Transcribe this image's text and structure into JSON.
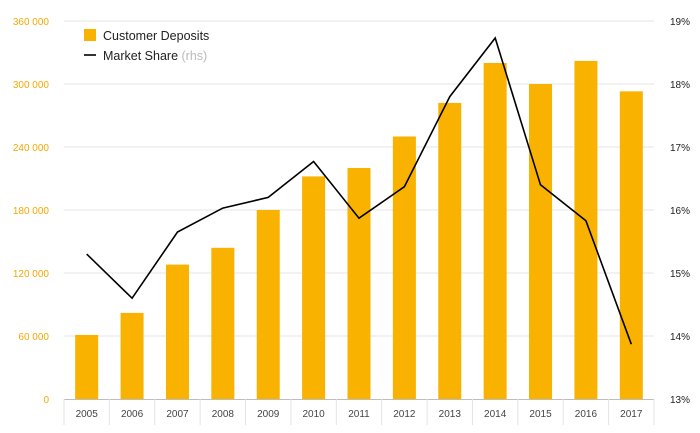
{
  "chart_data": {
    "type": "bar+line",
    "title": "",
    "categories": [
      "2005",
      "2006",
      "2007",
      "2008",
      "2009",
      "2010",
      "2011",
      "2012",
      "2013",
      "2014",
      "2015",
      "2016",
      "2017"
    ],
    "series": [
      {
        "name": "Customer Deposits",
        "type": "bar",
        "axis": "left",
        "color": "#f9b200",
        "values": [
          61000,
          82000,
          128000,
          144000,
          180000,
          212000,
          220000,
          250000,
          282000,
          320000,
          300000,
          322000,
          293000
        ]
      },
      {
        "name": "Market Share",
        "suffix": "(rhs)",
        "type": "line",
        "axis": "right",
        "color": "#000000",
        "values": [
          15.3,
          14.6,
          15.65,
          16.03,
          16.2,
          16.77,
          15.87,
          16.37,
          17.8,
          18.73,
          16.4,
          15.83,
          13.87
        ]
      }
    ],
    "y_left": {
      "min": 0,
      "max": 360000,
      "ticks": [
        0,
        60000,
        120000,
        180000,
        240000,
        300000,
        360000
      ],
      "tick_labels": [
        "0",
        "60 000",
        "120 000",
        "180 000",
        "240 000",
        "300 000",
        "360 000"
      ],
      "color": "#f5a800"
    },
    "y_right": {
      "min": 13,
      "max": 19,
      "ticks": [
        13,
        14,
        15,
        16,
        17,
        18,
        19
      ],
      "tick_labels": [
        "13%",
        "14%",
        "15%",
        "16%",
        "17%",
        "18%",
        "19%"
      ],
      "color": "#222222"
    },
    "xlabel": "",
    "grid": true,
    "legend": {
      "position": "top-left",
      "items": [
        {
          "label": "Customer Deposits",
          "suffix": "",
          "marker": "square"
        },
        {
          "label": "Market Share",
          "suffix": "(rhs)",
          "marker": "line"
        }
      ]
    }
  }
}
